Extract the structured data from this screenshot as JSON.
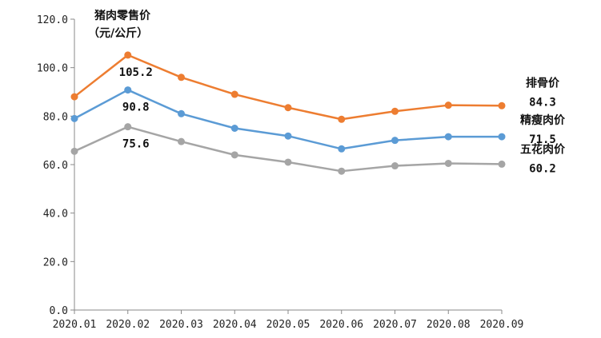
{
  "chart_data": {
    "type": "line",
    "unit_label": {
      "line1": "猪肉零售价",
      "line2": "（元/公斤）"
    },
    "categories": [
      "2020.01",
      "2020.02",
      "2020.03",
      "2020.04",
      "2020.05",
      "2020.06",
      "2020.07",
      "2020.08",
      "2020.09"
    ],
    "ylim": [
      0,
      120
    ],
    "yticks": [
      "0.0",
      "20.0",
      "40.0",
      "60.0",
      "80.0",
      "100.0",
      "120.0"
    ],
    "grid": false,
    "series": [
      {
        "name": "排骨价",
        "color": "#ED7D31",
        "values": [
          88.0,
          105.2,
          96.0,
          89.0,
          83.5,
          78.7,
          82.0,
          84.5,
          84.3
        ],
        "peak_label": "105.2",
        "end_label": "84.3"
      },
      {
        "name": "精瘦肉价",
        "color": "#5B9BD5",
        "values": [
          79.0,
          90.8,
          81.0,
          75.0,
          71.8,
          66.5,
          70.0,
          71.5,
          71.5
        ],
        "peak_label": "90.8",
        "end_label": "71.5"
      },
      {
        "name": "五花肉价",
        "color": "#A5A5A5",
        "values": [
          65.5,
          75.6,
          69.5,
          64.0,
          61.0,
          57.3,
          59.5,
          60.5,
          60.2
        ],
        "peak_label": "75.6",
        "end_label": "60.2"
      }
    ]
  }
}
